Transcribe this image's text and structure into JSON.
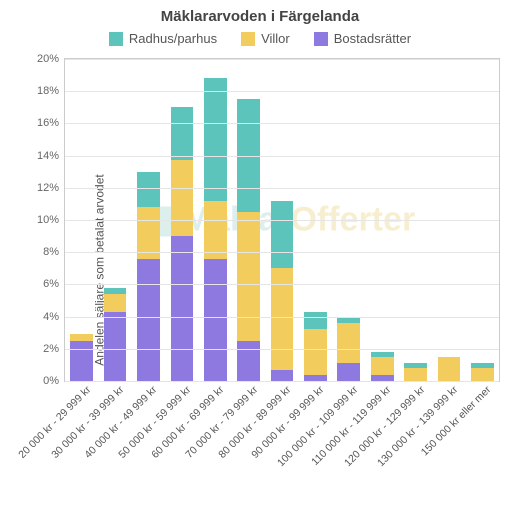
{
  "chart": {
    "type": "stacked-bar",
    "title": "Mäklararvoden i Färgelanda",
    "ylabel": "Andelen säljare som betalat arvodet",
    "title_fontsize": 15,
    "label_fontsize": 12,
    "tick_fontsize": 11,
    "background_color": "#ffffff",
    "grid_color": "#e5e5e5",
    "axis_color": "#cccccc",
    "ylim": [
      0,
      20
    ],
    "ytick_step": 2,
    "ytick_suffix": "%",
    "bar_width": 0.68,
    "legend_position": "top-center",
    "watermark": {
      "text_a": "Mäklar",
      "text_b": "Offerter",
      "color_a": "rgba(120,190,180,0.25)",
      "color_b": "rgba(230,200,100,0.3)"
    },
    "series": [
      {
        "key": "radhus",
        "label": "Radhus/parhus",
        "color": "#5cc4bb"
      },
      {
        "key": "villor",
        "label": "Villor",
        "color": "#f2cd5d"
      },
      {
        "key": "bostads",
        "label": "Bostadsrätter",
        "color": "#8e79e0"
      }
    ],
    "stack_order": [
      "bostads",
      "villor",
      "radhus"
    ],
    "categories": [
      "20 000 kr - 29 999 kr",
      "30 000 kr - 39 999 kr",
      "40 000 kr - 49 999 kr",
      "50 000 kr - 59 999 kr",
      "60 000 kr - 69 999 kr",
      "70 000 kr - 79 999 kr",
      "80 000 kr - 89 999 kr",
      "90 000 kr - 99 999 kr",
      "100 000 kr - 109 999 kr",
      "110 000 kr - 119 999 kr",
      "120 000 kr - 129 999 kr",
      "130 000 kr - 139 999 kr",
      "150 000 kr eller mer"
    ],
    "data": {
      "bostads": [
        2.5,
        4.3,
        7.6,
        9.0,
        7.6,
        2.5,
        0.7,
        0.4,
        1.1,
        0.4,
        0.0,
        0.0,
        0.0
      ],
      "villor": [
        0.4,
        1.1,
        3.2,
        4.7,
        3.6,
        8.0,
        6.3,
        2.8,
        2.5,
        1.1,
        0.8,
        1.5,
        0.8
      ],
      "radhus": [
        0.0,
        0.4,
        2.2,
        3.3,
        7.6,
        7.0,
        4.2,
        1.1,
        0.3,
        0.3,
        0.3,
        0.0,
        0.3
      ]
    }
  }
}
